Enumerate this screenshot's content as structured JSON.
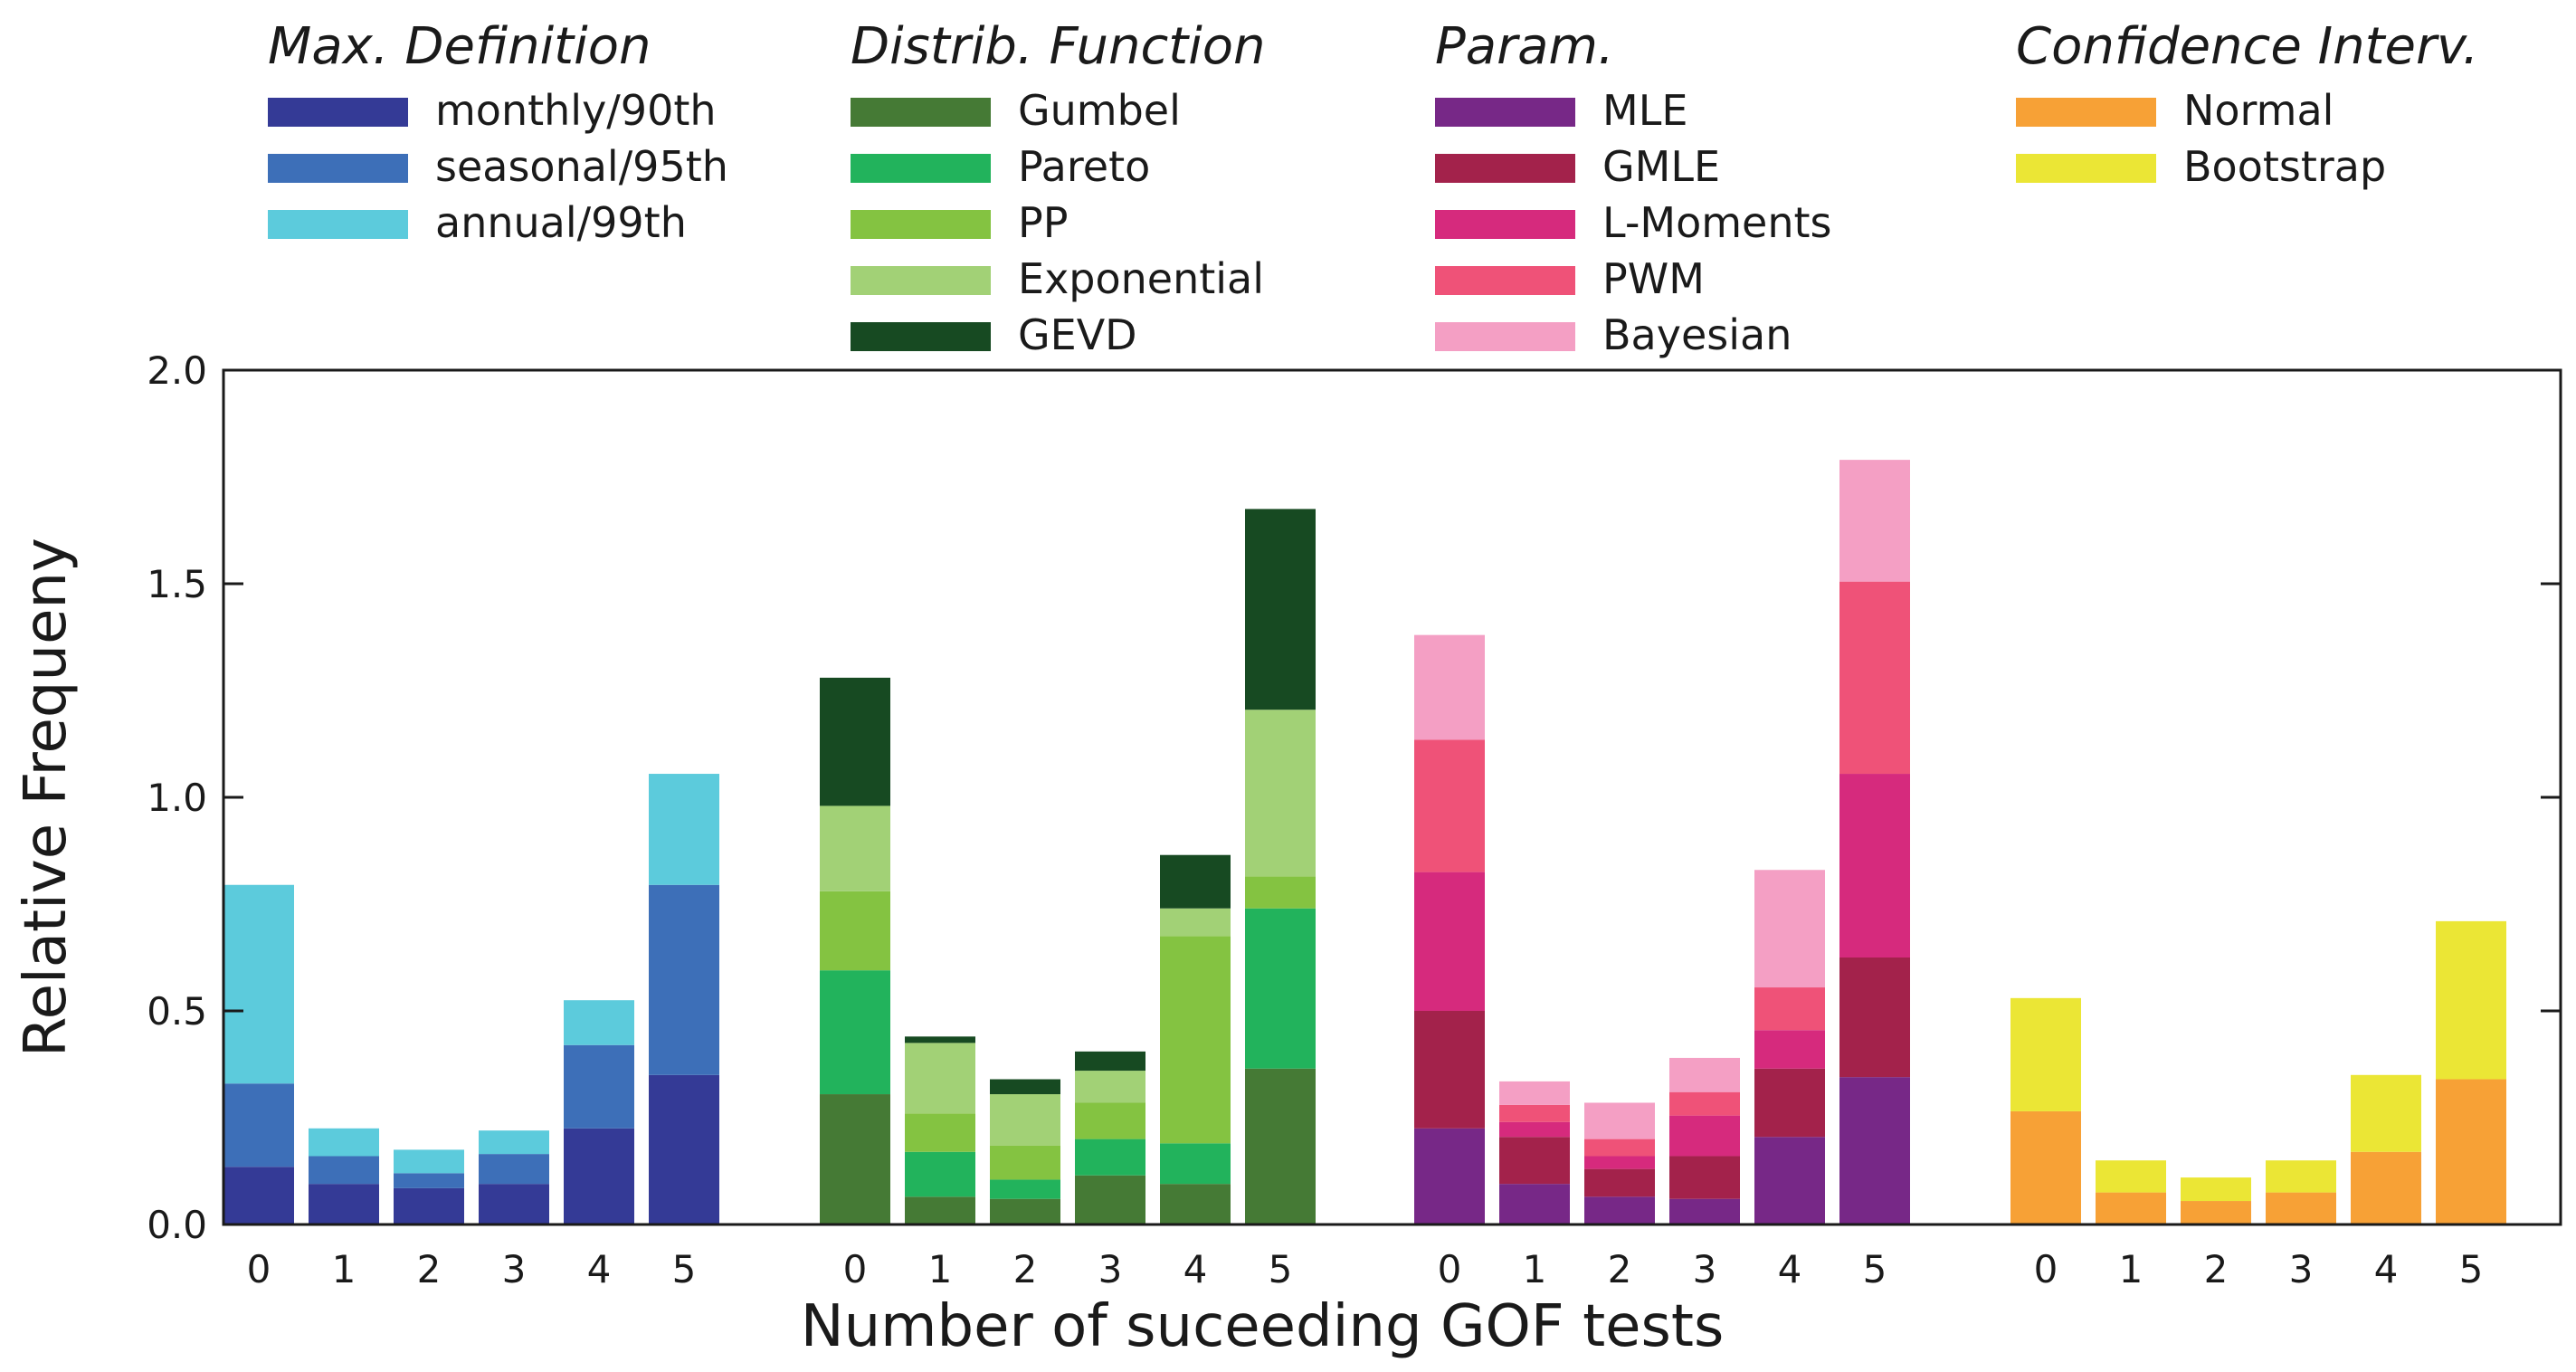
{
  "chart_data": {
    "type": "bar",
    "stacked": true,
    "xlabel": "Number of suceeding GOF tests",
    "ylabel": "Relative Frequeny",
    "ylim": [
      0,
      2.0
    ],
    "yticks": [
      0.0,
      0.5,
      1.0,
      1.5,
      2.0
    ],
    "ytick_labels": [
      "0.0",
      "0.5",
      "1.0",
      "1.5",
      "2.0"
    ],
    "categories": [
      "0",
      "1",
      "2",
      "3",
      "4",
      "5"
    ],
    "groups": [
      {
        "legend_title": "Max. Definition",
        "series": [
          {
            "name": "monthly/90th",
            "color": "#343a96",
            "values": [
              0.135,
              0.095,
              0.085,
              0.095,
              0.225,
              0.35
            ]
          },
          {
            "name": "seasonal/95th",
            "color": "#3d6fb8",
            "values": [
              0.195,
              0.065,
              0.035,
              0.07,
              0.195,
              0.445
            ]
          },
          {
            "name": "annual/99th",
            "color": "#5ccbdc",
            "values": [
              0.465,
              0.065,
              0.055,
              0.055,
              0.105,
              0.26
            ]
          }
        ]
      },
      {
        "legend_title": "Distrib. Function",
        "series": [
          {
            "name": "Gumbel",
            "color": "#457a35",
            "values": [
              0.305,
              0.065,
              0.06,
              0.115,
              0.095,
              0.365
            ]
          },
          {
            "name": "Pareto",
            "color": "#22b35c",
            "values": [
              0.29,
              0.105,
              0.045,
              0.085,
              0.095,
              0.375
            ]
          },
          {
            "name": "PP",
            "color": "#84c341",
            "values": [
              0.185,
              0.09,
              0.08,
              0.085,
              0.485,
              0.075
            ]
          },
          {
            "name": "Exponential",
            "color": "#a2d176",
            "values": [
              0.2,
              0.165,
              0.12,
              0.075,
              0.065,
              0.39
            ]
          },
          {
            "name": "GEVD",
            "color": "#174a22",
            "values": [
              0.3,
              0.015,
              0.035,
              0.045,
              0.125,
              0.47
            ]
          }
        ]
      },
      {
        "legend_title": "Param.",
        "series": [
          {
            "name": "MLE",
            "color": "#772887",
            "values": [
              0.225,
              0.095,
              0.065,
              0.06,
              0.205,
              0.345
            ]
          },
          {
            "name": "GMLE",
            "color": "#a3224b",
            "values": [
              0.275,
              0.11,
              0.065,
              0.1,
              0.16,
              0.28
            ]
          },
          {
            "name": "L-Moments",
            "color": "#d62a7d",
            "values": [
              0.325,
              0.035,
              0.03,
              0.095,
              0.09,
              0.43
            ]
          },
          {
            "name": "PWM",
            "color": "#ef5278",
            "values": [
              0.31,
              0.04,
              0.04,
              0.055,
              0.1,
              0.45
            ]
          },
          {
            "name": "Bayesian",
            "color": "#f49fc4",
            "values": [
              0.245,
              0.055,
              0.085,
              0.08,
              0.275,
              0.285
            ]
          }
        ]
      },
      {
        "legend_title": "Confidence Interv.",
        "series": [
          {
            "name": "Normal",
            "color": "#f7a136",
            "values": [
              0.265,
              0.075,
              0.055,
              0.075,
              0.17,
              0.34
            ]
          },
          {
            "name": "Bootstrap",
            "color": "#ebe635",
            "values": [
              0.265,
              0.075,
              0.055,
              0.075,
              0.18,
              0.37
            ]
          }
        ]
      }
    ]
  }
}
